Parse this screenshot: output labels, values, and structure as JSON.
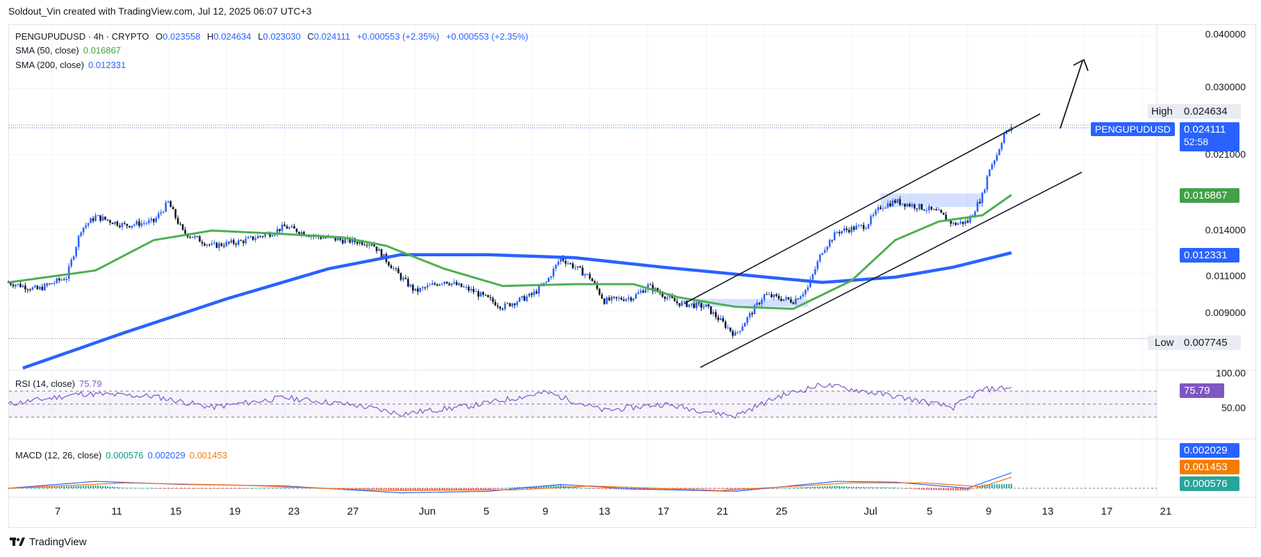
{
  "header": {
    "text": "Soldout_Vin created with TradingView.com, Jul 12, 2025 06:07 UTC+3"
  },
  "legend": {
    "symbol": "PENGUPUDUSD · 4h · CRYPTO",
    "o_label": "O",
    "o": "0.023558",
    "h_label": "H",
    "h": "0.024634",
    "l_label": "L",
    "l": "0.023030",
    "c_label": "C",
    "c": "0.024111",
    "change1": "+0.000553 (+2.35%)",
    "change2": "+0.000553 (+2.35%)",
    "sma50_label": "SMA (50, close)",
    "sma50_value": "0.016867",
    "sma200_label": "SMA (200, close)",
    "sma200_value": "0.012331",
    "rsi_label": "RSI (14, close)",
    "rsi_value": "75.79",
    "macd_label": "MACD (12, 26, close)",
    "macd_hist": "0.000576",
    "macd_line": "0.002029",
    "macd_signal": "0.001453"
  },
  "price_axis": {
    "ticks": [
      "0.040000",
      "0.030000",
      "0.021000",
      "0.014000",
      "0.011000",
      "0.009000"
    ],
    "high_label": "High",
    "high_value": "0.024634",
    "low_label": "Low",
    "low_value": "0.007745",
    "symbol_tag": "PENGUPUDUSD",
    "last_price": "0.024111",
    "countdown": "52:58",
    "sma50_tag": "0.016867",
    "sma200_tag": "0.012331"
  },
  "rsi_axis": {
    "ticks": [
      "100.00",
      "50.00"
    ],
    "value_tag": "75.79"
  },
  "macd_axis": {
    "macd_tag": "0.002029",
    "signal_tag": "0.001453",
    "hist_tag": "0.000576"
  },
  "x_axis": {
    "labels": [
      "7",
      "11",
      "15",
      "19",
      "23",
      "27",
      "Jun",
      "5",
      "9",
      "13",
      "17",
      "21",
      "25",
      "Jul",
      "5",
      "9",
      "13",
      "17",
      "21"
    ]
  },
  "brand": {
    "name": "TradingView"
  },
  "colors": {
    "up": "#2962ff",
    "down": "#131722",
    "sma50": "#4caf50",
    "sma200": "#2962ff",
    "rsi": "#7e57c2",
    "macd": "#2962ff",
    "signal": "#ff6d00",
    "hist_up": "#26a69a",
    "hist_down": "#ef5350"
  },
  "chart_data": {
    "type": "candlestick",
    "symbol": "PENGUPUDUSD",
    "timeframe": "4h",
    "x_range": [
      "2025-05-04",
      "2025-07-22"
    ],
    "y_scale": "log",
    "ylim": [
      0.0066,
      0.0425
    ],
    "close_series": [
      {
        "date": "2025-05-04",
        "close": 0.0105
      },
      {
        "date": "2025-05-06",
        "close": 0.0101
      },
      {
        "date": "2025-05-08",
        "close": 0.0108
      },
      {
        "date": "2025-05-09",
        "close": 0.014
      },
      {
        "date": "2025-05-10",
        "close": 0.015
      },
      {
        "date": "2025-05-12",
        "close": 0.0143
      },
      {
        "date": "2025-05-14",
        "close": 0.0146
      },
      {
        "date": "2025-05-15",
        "close": 0.0162
      },
      {
        "date": "2025-05-16",
        "close": 0.0138
      },
      {
        "date": "2025-05-18",
        "close": 0.0128
      },
      {
        "date": "2025-05-20",
        "close": 0.0131
      },
      {
        "date": "2025-05-22",
        "close": 0.0137
      },
      {
        "date": "2025-05-23",
        "close": 0.0142
      },
      {
        "date": "2025-05-25",
        "close": 0.0135
      },
      {
        "date": "2025-05-27",
        "close": 0.0132
      },
      {
        "date": "2025-05-29",
        "close": 0.013
      },
      {
        "date": "2025-05-31",
        "close": 0.0108
      },
      {
        "date": "2025-06-01",
        "close": 0.01
      },
      {
        "date": "2025-06-03",
        "close": 0.0106
      },
      {
        "date": "2025-06-05",
        "close": 0.01
      },
      {
        "date": "2025-06-07",
        "close": 0.0092
      },
      {
        "date": "2025-06-09",
        "close": 0.0098
      },
      {
        "date": "2025-06-10",
        "close": 0.0105
      },
      {
        "date": "2025-06-11",
        "close": 0.012
      },
      {
        "date": "2025-06-13",
        "close": 0.0108
      },
      {
        "date": "2025-06-14",
        "close": 0.0095
      },
      {
        "date": "2025-06-16",
        "close": 0.0097
      },
      {
        "date": "2025-06-17",
        "close": 0.0103
      },
      {
        "date": "2025-06-19",
        "close": 0.0094
      },
      {
        "date": "2025-06-21",
        "close": 0.0092
      },
      {
        "date": "2025-06-23",
        "close": 0.0079
      },
      {
        "date": "2025-06-24",
        "close": 0.0088
      },
      {
        "date": "2025-06-25",
        "close": 0.0098
      },
      {
        "date": "2025-06-27",
        "close": 0.0095
      },
      {
        "date": "2025-06-28",
        "close": 0.0102
      },
      {
        "date": "2025-06-29",
        "close": 0.0125
      },
      {
        "date": "2025-06-30",
        "close": 0.0138
      },
      {
        "date": "2025-07-02",
        "close": 0.0143
      },
      {
        "date": "2025-07-03",
        "close": 0.0158
      },
      {
        "date": "2025-07-04",
        "close": 0.0163
      },
      {
        "date": "2025-07-06",
        "close": 0.0157
      },
      {
        "date": "2025-07-07",
        "close": 0.0153
      },
      {
        "date": "2025-07-08",
        "close": 0.0144
      },
      {
        "date": "2025-07-09",
        "close": 0.0146
      },
      {
        "date": "2025-07-10",
        "close": 0.0168
      },
      {
        "date": "2025-07-10T12",
        "close": 0.0195
      },
      {
        "date": "2025-07-11",
        "close": 0.021
      },
      {
        "date": "2025-07-11T12",
        "close": 0.0235
      },
      {
        "date": "2025-07-12",
        "close": 0.024111
      }
    ],
    "ohlc_last": {
      "open": 0.023558,
      "high": 0.024634,
      "low": 0.02303,
      "close": 0.024111
    },
    "series": [
      {
        "name": "SMA (50, close)",
        "last": 0.016867,
        "points": [
          {
            "date": "2025-05-04",
            "value": 0.0105
          },
          {
            "date": "2025-05-10",
            "value": 0.0112
          },
          {
            "date": "2025-05-14",
            "value": 0.0132
          },
          {
            "date": "2025-05-18",
            "value": 0.0139
          },
          {
            "date": "2025-05-22",
            "value": 0.0137
          },
          {
            "date": "2025-05-27",
            "value": 0.0134
          },
          {
            "date": "2025-05-30",
            "value": 0.0128
          },
          {
            "date": "2025-06-03",
            "value": 0.0113
          },
          {
            "date": "2025-06-07",
            "value": 0.0103
          },
          {
            "date": "2025-06-12",
            "value": 0.0104
          },
          {
            "date": "2025-06-16",
            "value": 0.0104
          },
          {
            "date": "2025-06-19",
            "value": 0.0097
          },
          {
            "date": "2025-06-23",
            "value": 0.0092
          },
          {
            "date": "2025-06-27",
            "value": 0.0091
          },
          {
            "date": "2025-07-01",
            "value": 0.0106
          },
          {
            "date": "2025-07-04",
            "value": 0.0132
          },
          {
            "date": "2025-07-07",
            "value": 0.0146
          },
          {
            "date": "2025-07-10",
            "value": 0.0151
          },
          {
            "date": "2025-07-12",
            "value": 0.016867
          }
        ]
      },
      {
        "name": "SMA (200, close)",
        "last": 0.012331,
        "points": [
          {
            "date": "2025-05-05",
            "value": 0.0066
          },
          {
            "date": "2025-05-12",
            "value": 0.008
          },
          {
            "date": "2025-05-19",
            "value": 0.0096
          },
          {
            "date": "2025-05-26",
            "value": 0.0113
          },
          {
            "date": "2025-05-31",
            "value": 0.0122
          },
          {
            "date": "2025-06-06",
            "value": 0.0122
          },
          {
            "date": "2025-06-12",
            "value": 0.012
          },
          {
            "date": "2025-06-18",
            "value": 0.0114
          },
          {
            "date": "2025-06-24",
            "value": 0.0109
          },
          {
            "date": "2025-06-29",
            "value": 0.0105
          },
          {
            "date": "2025-07-04",
            "value": 0.0108
          },
          {
            "date": "2025-07-08",
            "value": 0.0114
          },
          {
            "date": "2025-07-12",
            "value": 0.012331
          }
        ]
      }
    ],
    "rsi": {
      "name": "RSI (14, close)",
      "last": 75.79,
      "ylim": [
        20,
        100
      ],
      "bands": [
        70,
        50,
        30
      ],
      "points": [
        {
          "date": "2025-05-04",
          "value": 50
        },
        {
          "date": "2025-05-09",
          "value": 66
        },
        {
          "date": "2025-05-14",
          "value": 62
        },
        {
          "date": "2025-05-18",
          "value": 45
        },
        {
          "date": "2025-05-23",
          "value": 60
        },
        {
          "date": "2025-05-28",
          "value": 48
        },
        {
          "date": "2025-05-31",
          "value": 35
        },
        {
          "date": "2025-06-05",
          "value": 48
        },
        {
          "date": "2025-06-10",
          "value": 68
        },
        {
          "date": "2025-06-14",
          "value": 40
        },
        {
          "date": "2025-06-18",
          "value": 50
        },
        {
          "date": "2025-06-23",
          "value": 32
        },
        {
          "date": "2025-06-26",
          "value": 62
        },
        {
          "date": "2025-06-29",
          "value": 80
        },
        {
          "date": "2025-07-04",
          "value": 62
        },
        {
          "date": "2025-07-08",
          "value": 45
        },
        {
          "date": "2025-07-10",
          "value": 72
        },
        {
          "date": "2025-07-12",
          "value": 75.79
        }
      ]
    },
    "macd": {
      "name": "MACD (12, 26, close)",
      "macd_last": 0.002029,
      "signal_last": 0.001453,
      "hist_last": 0.000576,
      "macd_points": [
        {
          "date": "2025-05-04",
          "value": 0.0
        },
        {
          "date": "2025-05-10",
          "value": 0.0009
        },
        {
          "date": "2025-05-16",
          "value": 0.0005
        },
        {
          "date": "2025-05-23",
          "value": 0.0003
        },
        {
          "date": "2025-05-31",
          "value": -0.0006
        },
        {
          "date": "2025-06-06",
          "value": -0.0004
        },
        {
          "date": "2025-06-11",
          "value": 0.0005
        },
        {
          "date": "2025-06-16",
          "value": -0.0001
        },
        {
          "date": "2025-06-23",
          "value": -0.0004
        },
        {
          "date": "2025-06-30",
          "value": 0.0009
        },
        {
          "date": "2025-07-04",
          "value": 0.0008
        },
        {
          "date": "2025-07-09",
          "value": 0.0
        },
        {
          "date": "2025-07-12",
          "value": 0.002029
        }
      ],
      "signal_points": [
        {
          "date": "2025-05-04",
          "value": 0.0
        },
        {
          "date": "2025-05-12",
          "value": 0.0007
        },
        {
          "date": "2025-05-20",
          "value": 0.0004
        },
        {
          "date": "2025-05-30",
          "value": -0.0003
        },
        {
          "date": "2025-06-08",
          "value": -0.0002
        },
        {
          "date": "2025-06-13",
          "value": 0.0003
        },
        {
          "date": "2025-06-22",
          "value": -0.0003
        },
        {
          "date": "2025-07-01",
          "value": 0.0007
        },
        {
          "date": "2025-07-06",
          "value": 0.0007
        },
        {
          "date": "2025-07-10",
          "value": 0.0002
        },
        {
          "date": "2025-07-12",
          "value": 0.001453
        }
      ]
    }
  }
}
